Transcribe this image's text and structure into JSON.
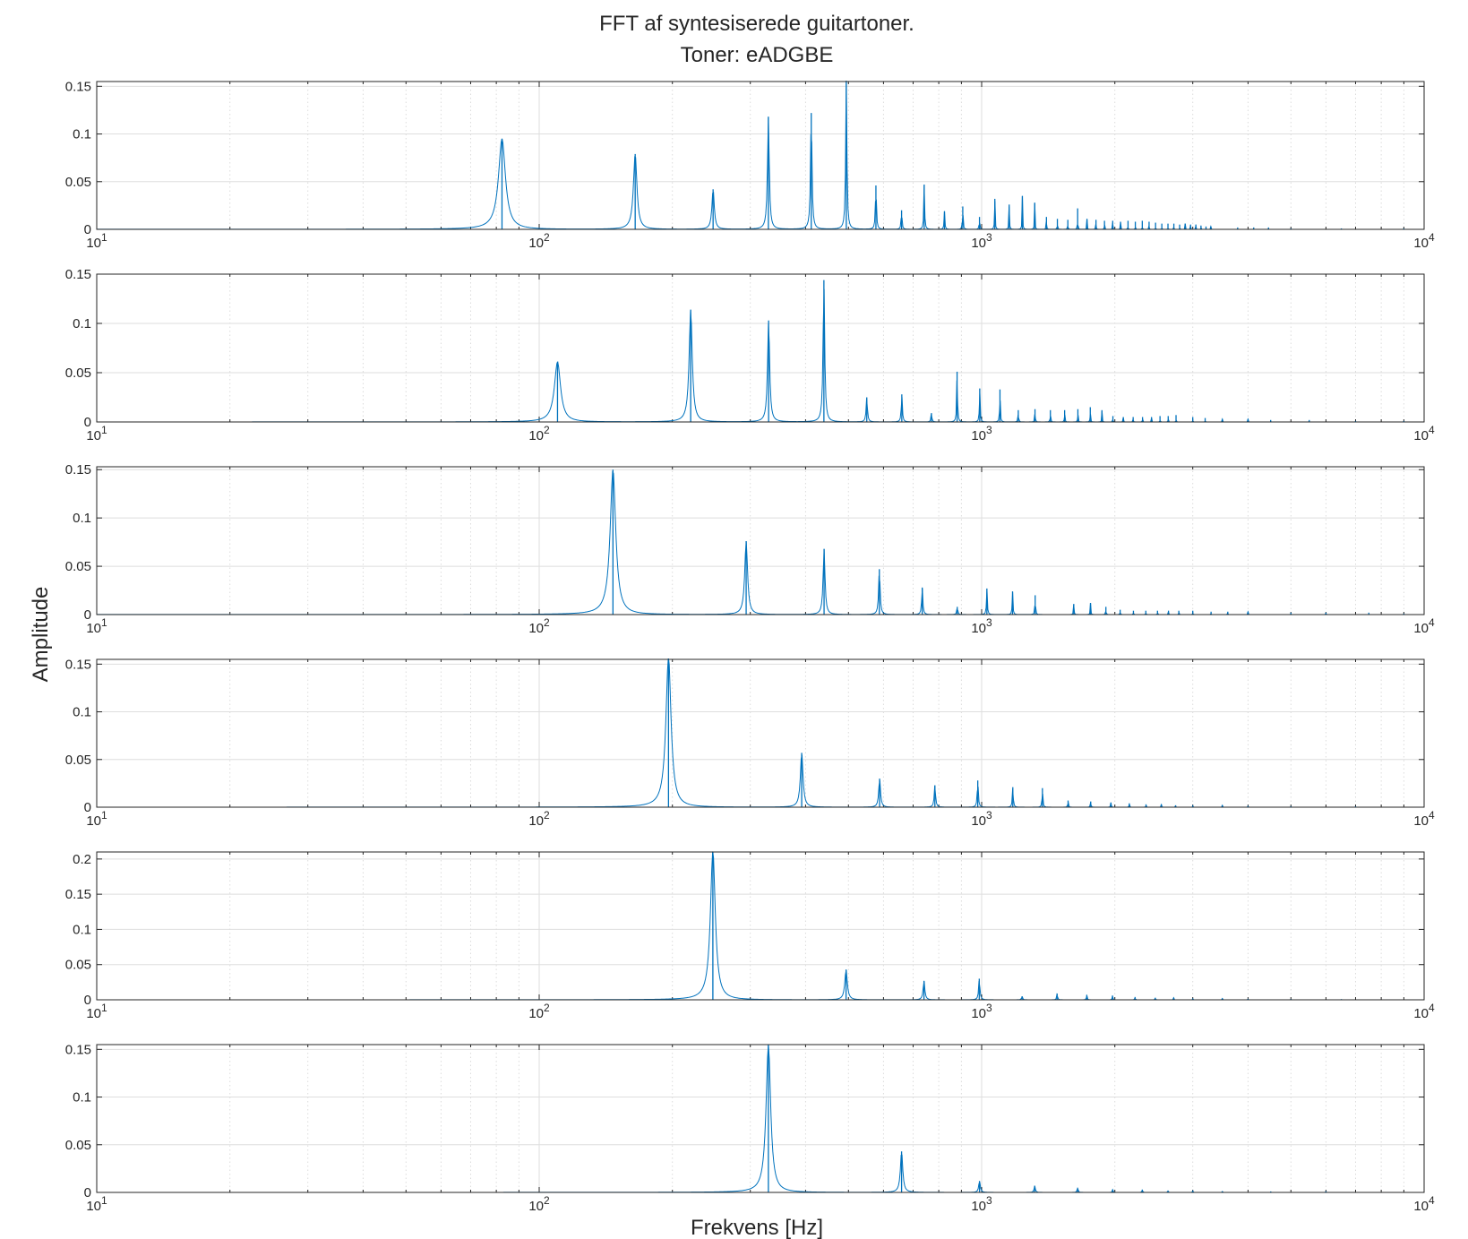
{
  "chart_data": {
    "type": "line",
    "title": [
      "FFT af syntesiserede guitartoner.",
      "Toner: eADGBE"
    ],
    "xlabel": "Frekvens [Hz]",
    "ylabel": "Amplitude",
    "xscale": "log",
    "xlim": [
      10,
      10000
    ],
    "grid": true,
    "color": "#0072bd",
    "xticks": [
      {
        "base": "10",
        "exp": "1"
      },
      {
        "base": "10",
        "exp": "2"
      },
      {
        "base": "10",
        "exp": "3"
      },
      {
        "base": "10",
        "exp": "4"
      }
    ],
    "panels": [
      {
        "yticks": [
          "0",
          "0.05",
          "0.1",
          "0.15"
        ],
        "ylim": [
          0,
          0.155
        ],
        "peaks": [
          [
            82.4,
            0.095
          ],
          [
            164.8,
            0.079
          ],
          [
            247.2,
            0.042
          ],
          [
            329.6,
            0.118
          ],
          [
            412,
            0.122
          ],
          [
            494.4,
            0.158
          ],
          [
            576.8,
            0.046
          ],
          [
            659.2,
            0.02
          ],
          [
            741.6,
            0.047
          ],
          [
            824,
            0.019
          ],
          [
            906.4,
            0.024
          ],
          [
            988.8,
            0.013
          ],
          [
            1071,
            0.032
          ],
          [
            1154,
            0.026
          ],
          [
            1236,
            0.035
          ],
          [
            1318,
            0.028
          ],
          [
            1401,
            0.013
          ],
          [
            1483,
            0.011
          ],
          [
            1566,
            0.01
          ],
          [
            1648,
            0.022
          ],
          [
            1730,
            0.011
          ],
          [
            1813,
            0.01
          ],
          [
            1895,
            0.009
          ],
          [
            1978,
            0.009
          ],
          [
            2060,
            0.008
          ],
          [
            2142,
            0.009
          ],
          [
            2225,
            0.008
          ],
          [
            2307,
            0.009
          ],
          [
            2390,
            0.008
          ],
          [
            2472,
            0.007
          ],
          [
            2554,
            0.006
          ],
          [
            2637,
            0.006
          ],
          [
            2719,
            0.006
          ],
          [
            2802,
            0.005
          ],
          [
            2884,
            0.006
          ],
          [
            2966,
            0.005
          ],
          [
            3049,
            0.005
          ],
          [
            3131,
            0.004
          ],
          [
            3214,
            0.003
          ],
          [
            3296,
            0.003
          ],
          [
            3790,
            0.002
          ],
          [
            4120,
            0.002
          ],
          [
            4450,
            0.002
          ],
          [
            5000,
            0.001
          ],
          [
            6500,
            0.001
          ],
          [
            9000,
            0.001
          ]
        ]
      },
      {
        "yticks": [
          "0",
          "0.05",
          "0.1",
          "0.15"
        ],
        "ylim": [
          0,
          0.15
        ],
        "peaks": [
          [
            110,
            0.061
          ],
          [
            220,
            0.114
          ],
          [
            330,
            0.103
          ],
          [
            440,
            0.144
          ],
          [
            550,
            0.025
          ],
          [
            660,
            0.028
          ],
          [
            770,
            0.009
          ],
          [
            880,
            0.051
          ],
          [
            990,
            0.034
          ],
          [
            1100,
            0.033
          ],
          [
            1210,
            0.012
          ],
          [
            1320,
            0.013
          ],
          [
            1430,
            0.012
          ],
          [
            1540,
            0.012
          ],
          [
            1650,
            0.013
          ],
          [
            1760,
            0.015
          ],
          [
            1870,
            0.012
          ],
          [
            1980,
            0.006
          ],
          [
            2090,
            0.005
          ],
          [
            2200,
            0.005
          ],
          [
            2310,
            0.005
          ],
          [
            2420,
            0.005
          ],
          [
            2530,
            0.006
          ],
          [
            2640,
            0.006
          ],
          [
            2750,
            0.007
          ],
          [
            3000,
            0.005
          ],
          [
            3200,
            0.004
          ],
          [
            3500,
            0.003
          ],
          [
            4000,
            0.003
          ],
          [
            4500,
            0.002
          ],
          [
            5500,
            0.002
          ],
          [
            7000,
            0.001
          ],
          [
            9000,
            0.001
          ]
        ]
      },
      {
        "yticks": [
          "0",
          "0.05",
          "0.1",
          "0.15"
        ],
        "ylim": [
          0,
          0.153
        ],
        "peaks": [
          [
            146.8,
            0.15
          ],
          [
            293.6,
            0.076
          ],
          [
            440.4,
            0.068
          ],
          [
            587.2,
            0.047
          ],
          [
            734,
            0.028
          ],
          [
            880.8,
            0.008
          ],
          [
            1027.6,
            0.027
          ],
          [
            1174.4,
            0.024
          ],
          [
            1321.2,
            0.02
          ],
          [
            1615,
            0.011
          ],
          [
            1762,
            0.012
          ],
          [
            1909,
            0.008
          ],
          [
            2056,
            0.005
          ],
          [
            2203,
            0.004
          ],
          [
            2350,
            0.004
          ],
          [
            2497,
            0.004
          ],
          [
            2644,
            0.004
          ],
          [
            2790,
            0.004
          ],
          [
            3000,
            0.004
          ],
          [
            3300,
            0.003
          ],
          [
            3600,
            0.003
          ],
          [
            4000,
            0.003
          ],
          [
            5000,
            0.002
          ],
          [
            6000,
            0.002
          ],
          [
            7500,
            0.002
          ],
          [
            9000,
            0.001
          ]
        ]
      },
      {
        "yticks": [
          "0",
          "0.05",
          "0.1",
          "0.15"
        ],
        "ylim": [
          0,
          0.155
        ],
        "peaks": [
          [
            196,
            0.158
          ],
          [
            392,
            0.057
          ],
          [
            588,
            0.03
          ],
          [
            784,
            0.023
          ],
          [
            980,
            0.028
          ],
          [
            1176,
            0.021
          ],
          [
            1372,
            0.02
          ],
          [
            1568,
            0.007
          ],
          [
            1764,
            0.006
          ],
          [
            1960,
            0.005
          ],
          [
            2156,
            0.004
          ],
          [
            2352,
            0.003
          ],
          [
            2548,
            0.003
          ],
          [
            2744,
            0.002
          ],
          [
            3000,
            0.002
          ],
          [
            3500,
            0.002
          ],
          [
            4000,
            0.001
          ],
          [
            5000,
            0.001
          ],
          [
            7000,
            0.001
          ]
        ]
      },
      {
        "yticks": [
          "0",
          "0.05",
          "0.1",
          "0.15",
          "0.2"
        ],
        "ylim": [
          0,
          0.21
        ],
        "peaks": [
          [
            246.9,
            0.212
          ],
          [
            493.8,
            0.043
          ],
          [
            740.7,
            0.027
          ],
          [
            987.6,
            0.03
          ],
          [
            1234,
            0.005
          ],
          [
            1481,
            0.009
          ],
          [
            1728,
            0.007
          ],
          [
            1975,
            0.006
          ],
          [
            2222,
            0.004
          ],
          [
            2469,
            0.003
          ],
          [
            2716,
            0.003
          ],
          [
            3000,
            0.002
          ],
          [
            3500,
            0.002
          ],
          [
            4000,
            0.001
          ],
          [
            5000,
            0.001
          ],
          [
            6500,
            0.001
          ]
        ]
      },
      {
        "yticks": [
          "0",
          "0.05",
          "0.1",
          "0.15"
        ],
        "ylim": [
          0,
          0.155
        ],
        "peaks": [
          [
            329.6,
            0.155
          ],
          [
            659.2,
            0.043
          ],
          [
            988.8,
            0.012
          ],
          [
            1318,
            0.007
          ],
          [
            1648,
            0.005
          ],
          [
            1978,
            0.003
          ],
          [
            2307,
            0.003
          ],
          [
            2637,
            0.002
          ],
          [
            3000,
            0.002
          ],
          [
            3500,
            0.001
          ],
          [
            4500,
            0.001
          ],
          [
            6000,
            0.001
          ]
        ]
      }
    ]
  }
}
